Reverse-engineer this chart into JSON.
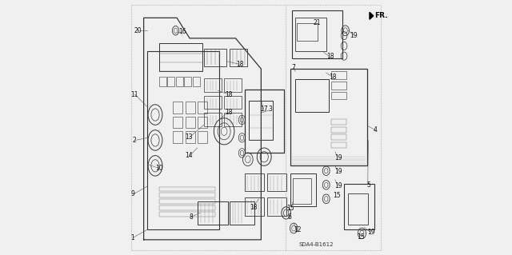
{
  "bg_color": "#f0f0f0",
  "line_color": "#333333",
  "text_color": "#111111",
  "diagram_ref": "SDA4-B1612",
  "fr_label": "FR.",
  "arrow_color": "#222222"
}
